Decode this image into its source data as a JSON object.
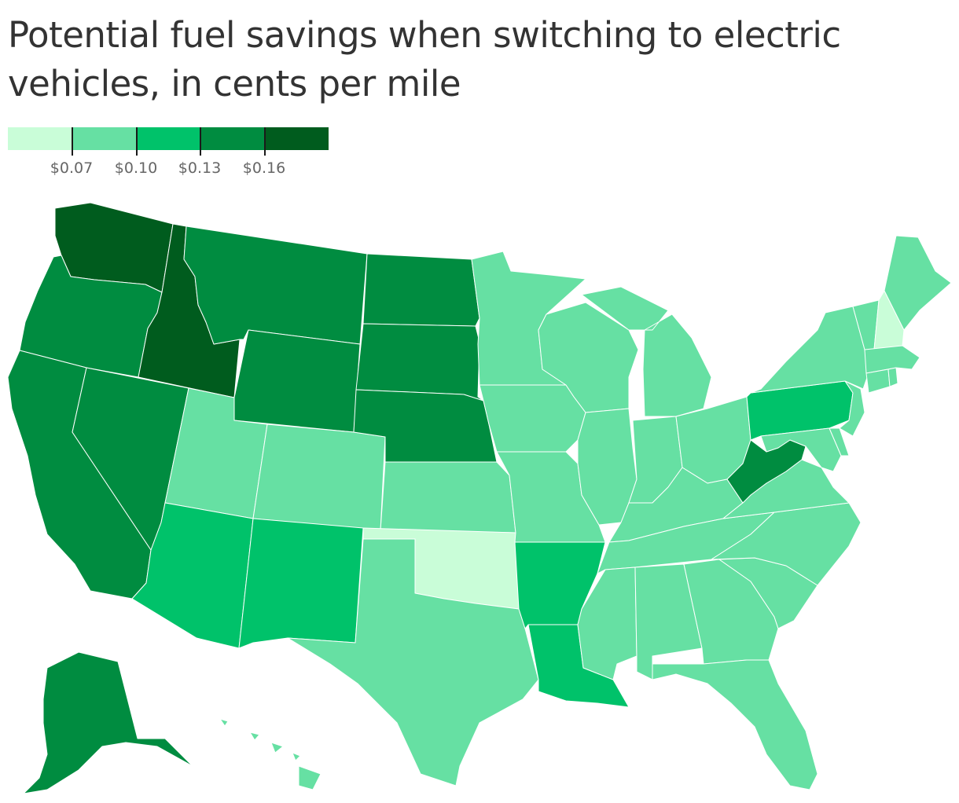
{
  "title": "Potential fuel savings when switching to electric vehicles, in cents per mile",
  "legend": {
    "labels": [
      "$0.07",
      "$0.10",
      "$0.13",
      "$0.16"
    ],
    "colors": [
      "#c9fdd8",
      "#66e0a3",
      "#00c26a",
      "#008c40",
      "#005c1e"
    ]
  },
  "map_data": {
    "type": "choropleth",
    "bins": [
      "below $0.07",
      "$0.07–$0.10",
      "$0.10–$0.13",
      "$0.13–$0.16",
      "above $0.16"
    ],
    "states": {
      "WA": 4,
      "ID": 4,
      "OR": 3,
      "CA": 3,
      "NV": 3,
      "MT": 3,
      "WY": 3,
      "ND": 3,
      "SD": 3,
      "NE": 3,
      "WV": 3,
      "AK": 3,
      "AZ": 2,
      "NM": 2,
      "AR": 2,
      "LA": 2,
      "PA": 2,
      "OK": 0,
      "NH": 0,
      "UT": 1,
      "CO": 1,
      "KS": 1,
      "TX": 1,
      "MN": 1,
      "IA": 1,
      "MO": 1,
      "WI": 1,
      "IL": 1,
      "MI": 1,
      "IN": 1,
      "OH": 1,
      "KY": 1,
      "TN": 1,
      "MS": 1,
      "AL": 1,
      "GA": 1,
      "FL": 1,
      "SC": 1,
      "NC": 1,
      "VA": 1,
      "MD": 1,
      "DE": 1,
      "NJ": 1,
      "NY": 1,
      "CT": 1,
      "RI": 1,
      "MA": 1,
      "VT": 1,
      "ME": 1,
      "HI": 1
    }
  }
}
